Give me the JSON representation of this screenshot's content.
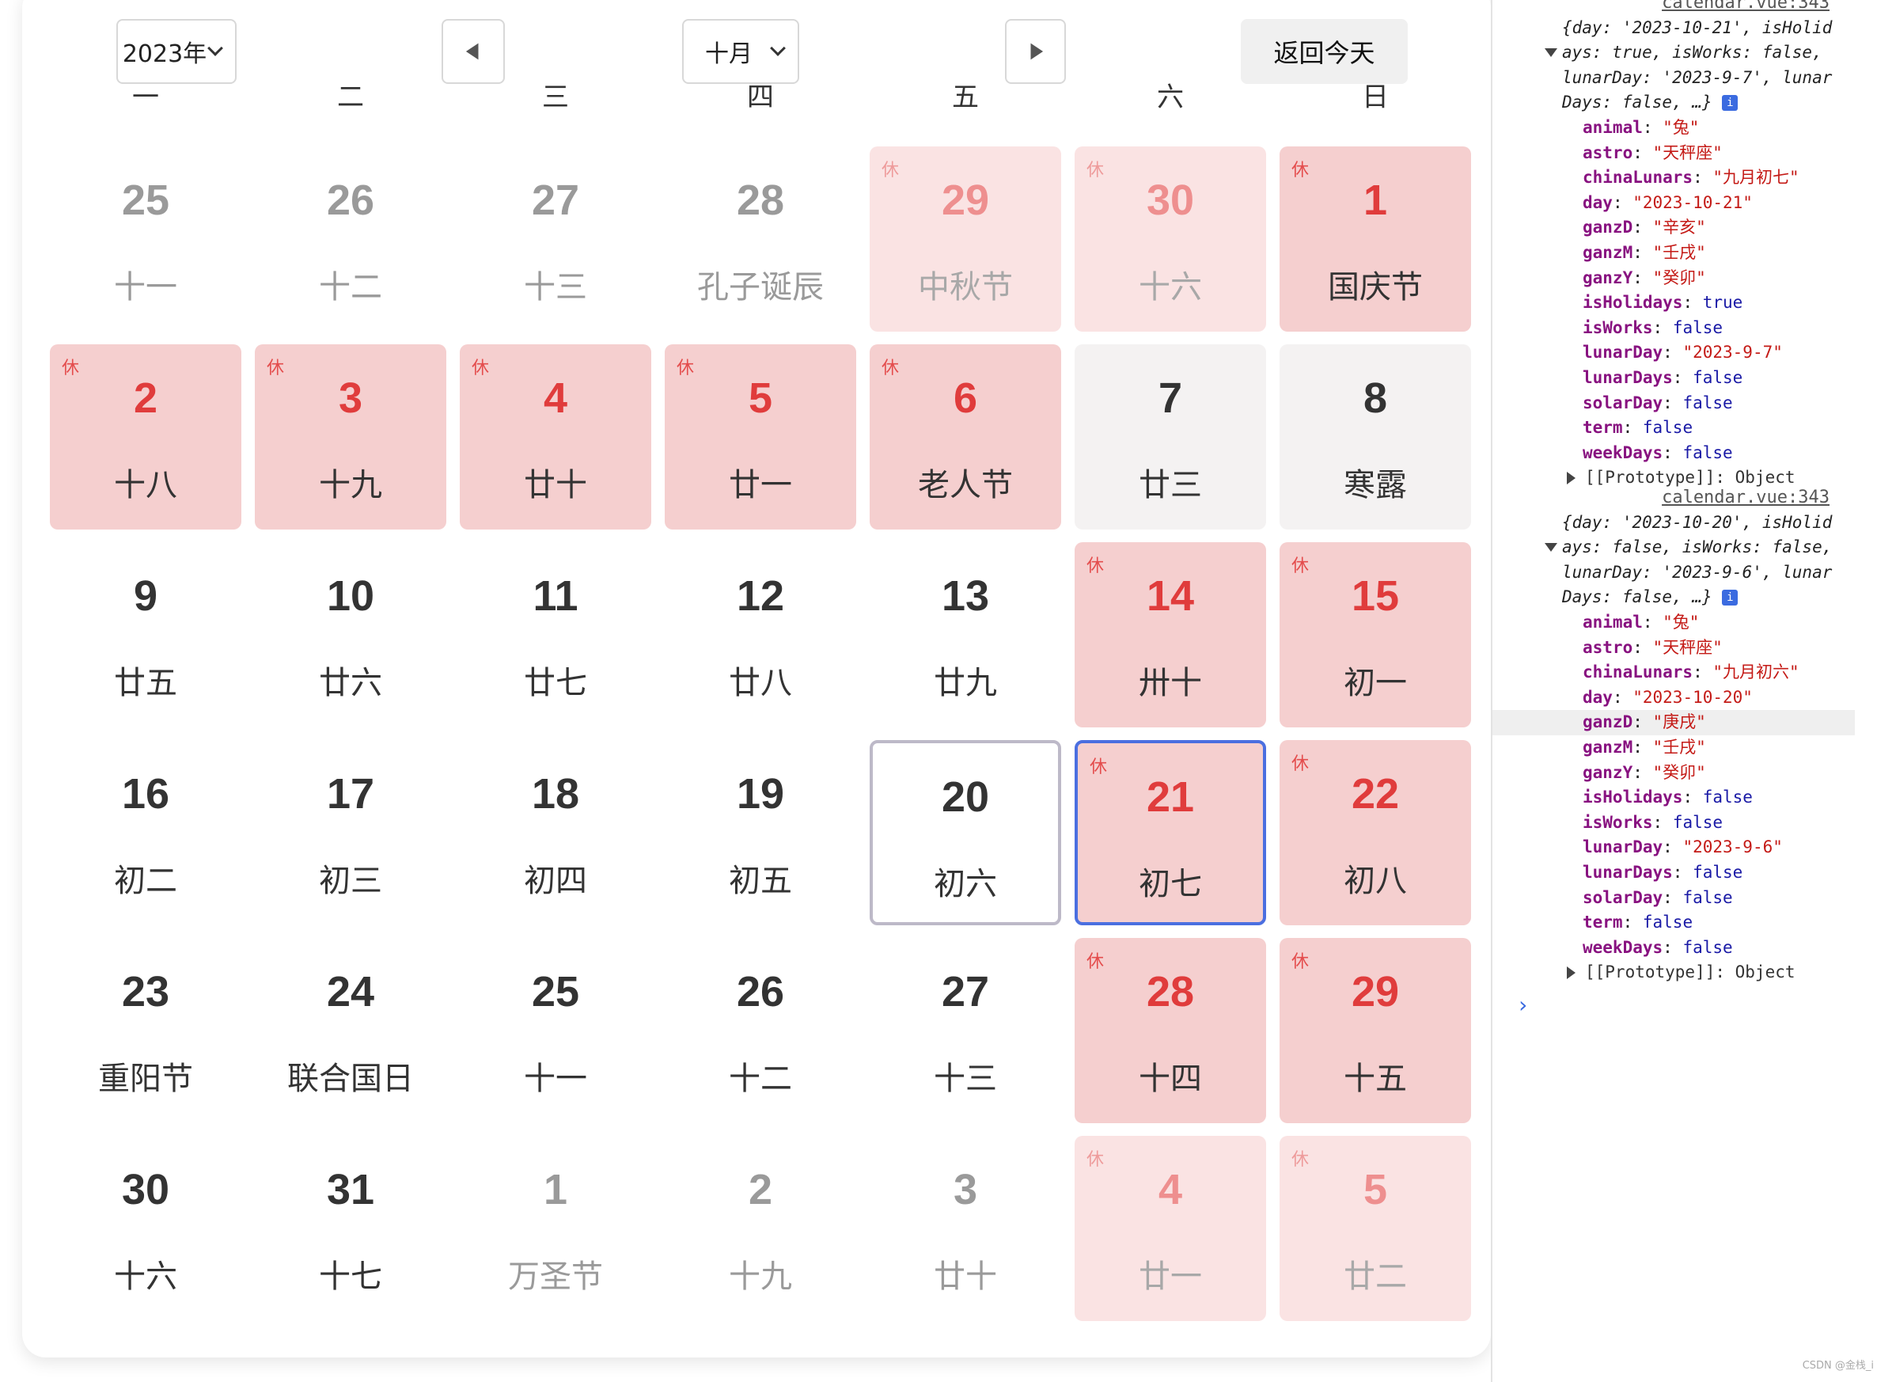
{
  "toolbar": {
    "year_select": "2023年",
    "month_select": "十月",
    "prev_icon": "triangle-left-icon",
    "next_icon": "triangle-right-icon",
    "today_button": "返回今天"
  },
  "weekdays": [
    "一",
    "二",
    "三",
    "四",
    "五",
    "六",
    "日"
  ],
  "rest_label": "休",
  "colors": {
    "holiday_bg": "#f5cfcf",
    "holiday_text": "#e03c3c",
    "other_month_holiday_bg": "#fae3e3",
    "weekend_workday_bg": "#f4f2f2",
    "selected_border": "#4b6fe0",
    "today_border": "#bdb9c8"
  },
  "calendar": {
    "days": [
      {
        "day": "25",
        "sub": "十一",
        "other": true,
        "holiday": false,
        "rest": false
      },
      {
        "day": "26",
        "sub": "十二",
        "other": true,
        "holiday": false,
        "rest": false
      },
      {
        "day": "27",
        "sub": "十三",
        "other": true,
        "holiday": false,
        "rest": false
      },
      {
        "day": "28",
        "sub": "孔子诞辰",
        "other": true,
        "holiday": false,
        "rest": false
      },
      {
        "day": "29",
        "sub": "中秋节",
        "other": true,
        "holiday": true,
        "rest": true
      },
      {
        "day": "30",
        "sub": "十六",
        "other": true,
        "holiday": true,
        "rest": true
      },
      {
        "day": "1",
        "sub": "国庆节",
        "other": false,
        "holiday": true,
        "rest": true
      },
      {
        "day": "2",
        "sub": "十八",
        "other": false,
        "holiday": true,
        "rest": true
      },
      {
        "day": "3",
        "sub": "十九",
        "other": false,
        "holiday": true,
        "rest": true
      },
      {
        "day": "4",
        "sub": "廿十",
        "other": false,
        "holiday": true,
        "rest": true
      },
      {
        "day": "5",
        "sub": "廿一",
        "other": false,
        "holiday": true,
        "rest": true
      },
      {
        "day": "6",
        "sub": "老人节",
        "other": false,
        "holiday": true,
        "rest": true
      },
      {
        "day": "7",
        "sub": "廿三",
        "other": false,
        "holiday": false,
        "rest": false,
        "workday": true
      },
      {
        "day": "8",
        "sub": "寒露",
        "other": false,
        "holiday": false,
        "rest": false,
        "workday": true
      },
      {
        "day": "9",
        "sub": "廿五",
        "other": false,
        "holiday": false,
        "rest": false
      },
      {
        "day": "10",
        "sub": "廿六",
        "other": false,
        "holiday": false,
        "rest": false
      },
      {
        "day": "11",
        "sub": "廿七",
        "other": false,
        "holiday": false,
        "rest": false
      },
      {
        "day": "12",
        "sub": "廿八",
        "other": false,
        "holiday": false,
        "rest": false
      },
      {
        "day": "13",
        "sub": "廿九",
        "other": false,
        "holiday": false,
        "rest": false
      },
      {
        "day": "14",
        "sub": "卅十",
        "other": false,
        "holiday": true,
        "rest": true
      },
      {
        "day": "15",
        "sub": "初一",
        "other": false,
        "holiday": true,
        "rest": true
      },
      {
        "day": "16",
        "sub": "初二",
        "other": false,
        "holiday": false,
        "rest": false
      },
      {
        "day": "17",
        "sub": "初三",
        "other": false,
        "holiday": false,
        "rest": false
      },
      {
        "day": "18",
        "sub": "初四",
        "other": false,
        "holiday": false,
        "rest": false
      },
      {
        "day": "19",
        "sub": "初五",
        "other": false,
        "holiday": false,
        "rest": false
      },
      {
        "day": "20",
        "sub": "初六",
        "other": false,
        "holiday": false,
        "rest": false,
        "today": true
      },
      {
        "day": "21",
        "sub": "初七",
        "other": false,
        "holiday": true,
        "rest": true,
        "selected": true
      },
      {
        "day": "22",
        "sub": "初八",
        "other": false,
        "holiday": true,
        "rest": true
      },
      {
        "day": "23",
        "sub": "重阳节",
        "other": false,
        "holiday": false,
        "rest": false
      },
      {
        "day": "24",
        "sub": "联合国日",
        "other": false,
        "holiday": false,
        "rest": false
      },
      {
        "day": "25",
        "sub": "十一",
        "other": false,
        "holiday": false,
        "rest": false
      },
      {
        "day": "26",
        "sub": "十二",
        "other": false,
        "holiday": false,
        "rest": false
      },
      {
        "day": "27",
        "sub": "十三",
        "other": false,
        "holiday": false,
        "rest": false
      },
      {
        "day": "28",
        "sub": "十四",
        "other": false,
        "holiday": true,
        "rest": true
      },
      {
        "day": "29",
        "sub": "十五",
        "other": false,
        "holiday": true,
        "rest": true
      },
      {
        "day": "30",
        "sub": "十六",
        "other": false,
        "holiday": false,
        "rest": false
      },
      {
        "day": "31",
        "sub": "十七",
        "other": false,
        "holiday": false,
        "rest": false
      },
      {
        "day": "1",
        "sub": "万圣节",
        "other": true,
        "holiday": false,
        "rest": false
      },
      {
        "day": "2",
        "sub": "十九",
        "other": true,
        "holiday": false,
        "rest": false
      },
      {
        "day": "3",
        "sub": "廿十",
        "other": true,
        "holiday": false,
        "rest": false
      },
      {
        "day": "4",
        "sub": "廿一",
        "other": true,
        "holiday": true,
        "rest": true
      },
      {
        "day": "5",
        "sub": "廿二",
        "other": true,
        "holiday": true,
        "rest": true
      }
    ]
  },
  "console": {
    "entries": [
      {
        "source": "calendar.vue:343",
        "summary_lines": [
          "{day: '2023-10-21', isHolid",
          "ays: true, isWorks: false,",
          "lunarDay: '2023-9-7', lunar",
          "Days: false, …}"
        ],
        "props": [
          {
            "key": "animal",
            "value": "\"兔\"",
            "type": "string"
          },
          {
            "key": "astro",
            "value": "\"天秤座\"",
            "type": "string"
          },
          {
            "key": "chinaLunars",
            "value": "\"九月初七\"",
            "type": "string"
          },
          {
            "key": "day",
            "value": "\"2023-10-21\"",
            "type": "string"
          },
          {
            "key": "ganzD",
            "value": "\"辛亥\"",
            "type": "string"
          },
          {
            "key": "ganzM",
            "value": "\"壬戌\"",
            "type": "string"
          },
          {
            "key": "ganzY",
            "value": "\"癸卯\"",
            "type": "string"
          },
          {
            "key": "isHolidays",
            "value": "true",
            "type": "bool"
          },
          {
            "key": "isWorks",
            "value": "false",
            "type": "bool"
          },
          {
            "key": "lunarDay",
            "value": "\"2023-9-7\"",
            "type": "string"
          },
          {
            "key": "lunarDays",
            "value": "false",
            "type": "bool"
          },
          {
            "key": "solarDay",
            "value": "false",
            "type": "bool"
          },
          {
            "key": "term",
            "value": "false",
            "type": "bool"
          },
          {
            "key": "weekDays",
            "value": "false",
            "type": "bool"
          }
        ],
        "proto": "[[Prototype]]: Object"
      },
      {
        "source": "calendar.vue:343",
        "summary_lines": [
          "{day: '2023-10-20', isHolid",
          "ays: false, isWorks: false,",
          "lunarDay: '2023-9-6', lunar",
          "Days: false, …}"
        ],
        "props": [
          {
            "key": "animal",
            "value": "\"兔\"",
            "type": "string"
          },
          {
            "key": "astro",
            "value": "\"天秤座\"",
            "type": "string"
          },
          {
            "key": "chinaLunars",
            "value": "\"九月初六\"",
            "type": "string"
          },
          {
            "key": "day",
            "value": "\"2023-10-20\"",
            "type": "string"
          },
          {
            "key": "ganzD",
            "value": "\"庚戌\"",
            "type": "string",
            "highlight": true
          },
          {
            "key": "ganzM",
            "value": "\"壬戌\"",
            "type": "string"
          },
          {
            "key": "ganzY",
            "value": "\"癸卯\"",
            "type": "string"
          },
          {
            "key": "isHolidays",
            "value": "false",
            "type": "bool"
          },
          {
            "key": "isWorks",
            "value": "false",
            "type": "bool"
          },
          {
            "key": "lunarDay",
            "value": "\"2023-9-6\"",
            "type": "string"
          },
          {
            "key": "lunarDays",
            "value": "false",
            "type": "bool"
          },
          {
            "key": "solarDay",
            "value": "false",
            "type": "bool"
          },
          {
            "key": "term",
            "value": "false",
            "type": "bool"
          },
          {
            "key": "weekDays",
            "value": "false",
            "type": "bool"
          }
        ],
        "proto": "[[Prototype]]: Object"
      }
    ],
    "prompt": "›",
    "watermark": "CSDN @金栈_i"
  }
}
